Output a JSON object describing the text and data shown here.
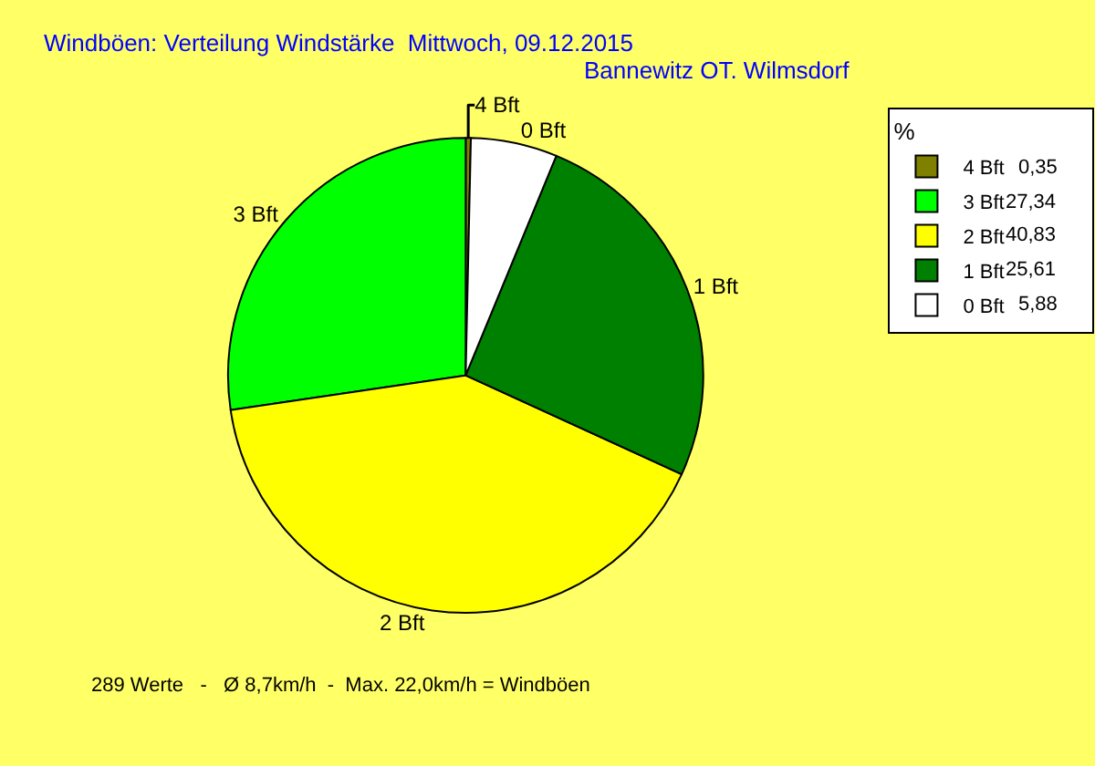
{
  "chart_data": {
    "type": "pie",
    "title": "Windböen: Verteilung Windstärke  Mittwoch, 09.12.2015",
    "subtitle": "Bannewitz OT. Wilmsdorf",
    "legend_title": "%",
    "categories": [
      "4 Bft",
      "3 Bft",
      "2 Bft",
      "1 Bft",
      "0 Bft"
    ],
    "values": [
      0.35,
      27.34,
      40.83,
      25.61,
      5.88
    ],
    "value_labels": [
      "0,35",
      "27,34",
      "40,83",
      "25,61",
      "5,88"
    ],
    "colors": [
      "#808000",
      "#00ff00",
      "#ffff00",
      "#008000",
      "#ffffff"
    ],
    "legend": "top right",
    "annotations": [
      "289 Werte   -   Ø 8,7km/h  -  Max. 22,0km/h = Windböen"
    ]
  }
}
